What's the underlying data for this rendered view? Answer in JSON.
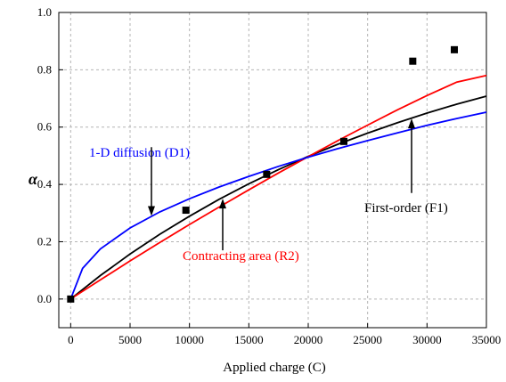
{
  "chart_data": {
    "type": "line",
    "title": "",
    "xlabel": "Applied charge (C)",
    "ylabel": "α",
    "xlim": [
      -1000,
      35000
    ],
    "ylim": [
      -0.1,
      1.0
    ],
    "xticks": [
      0,
      5000,
      10000,
      15000,
      20000,
      25000,
      30000,
      35000
    ],
    "yticks": [
      0.0,
      0.2,
      0.4,
      0.6,
      0.8,
      1.0
    ],
    "xtick_labels": [
      "0",
      "5000",
      "10000",
      "15000",
      "20000",
      "25000",
      "30000",
      "35000"
    ],
    "ytick_labels": [
      "0.0",
      "0.2",
      "0.4",
      "0.6",
      "0.8",
      "1.0"
    ],
    "grid": true,
    "legend": "none",
    "scatter": {
      "x": [
        0,
        9700,
        16500,
        23000,
        28800,
        32300
      ],
      "y": [
        0.0,
        0.31,
        0.435,
        0.55,
        0.83,
        0.87
      ],
      "color": "#000000"
    },
    "series": [
      {
        "color": "#000000",
        "x": [
          0,
          2500,
          5000,
          7500,
          10000,
          12500,
          15000,
          17500,
          20000,
          22500,
          25000,
          27500,
          30000,
          32500,
          35000
        ],
        "y": [
          0.0,
          0.082,
          0.157,
          0.226,
          0.289,
          0.348,
          0.402,
          0.452,
          0.498,
          0.54,
          0.579,
          0.615,
          0.649,
          0.68,
          0.708
        ]
      },
      {
        "color": "#ff0000",
        "x": [
          0,
          2500,
          5000,
          7500,
          10000,
          12500,
          15000,
          17500,
          20000,
          22500,
          25000,
          27500,
          30000,
          32500,
          35000
        ],
        "y": [
          0.0,
          0.067,
          0.133,
          0.197,
          0.26,
          0.321,
          0.381,
          0.44,
          0.497,
          0.553,
          0.607,
          0.66,
          0.71,
          0.757,
          0.78
        ]
      },
      {
        "color": "#0000ff",
        "x": [
          0,
          1000,
          2500,
          5000,
          7500,
          10000,
          12500,
          15000,
          17500,
          20000,
          22500,
          25000,
          27500,
          30000,
          32500,
          35000
        ],
        "y": [
          0.0,
          0.107,
          0.175,
          0.248,
          0.304,
          0.35,
          0.391,
          0.428,
          0.463,
          0.495,
          0.525,
          0.553,
          0.58,
          0.606,
          0.63,
          0.652
        ]
      }
    ],
    "annotations": [
      {
        "text": "1-D diffusion (D1)",
        "color": "#0000ff",
        "arrow_x": 6800,
        "arrow_from_y": 0.53,
        "arrow_to_y": 0.29
      },
      {
        "text": "Contracting area (R2)",
        "color": "#ff0000",
        "arrow_x": 12800,
        "arrow_from_y": 0.17,
        "arrow_to_y": 0.35
      },
      {
        "text": "First-order (F1)",
        "color": "#000000",
        "arrow_x": 28700,
        "arrow_from_y": 0.37,
        "arrow_to_y": 0.63
      }
    ]
  }
}
